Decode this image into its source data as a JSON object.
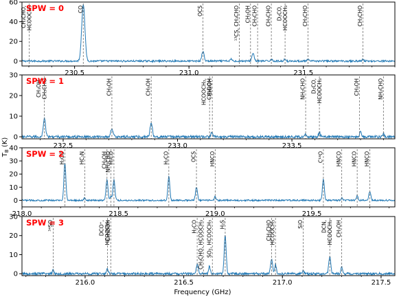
{
  "figure": {
    "xlabel": "Frequency (GHz)",
    "ylabel": "T_B (K)"
  },
  "chart_data": [
    {
      "type": "line",
      "label": "SPW = 0",
      "xlim": [
        230.27,
        231.9
      ],
      "ylim": [
        -5,
        60
      ],
      "xticks": [
        230.5,
        231.0,
        231.5
      ],
      "xtick_labels": [
        "230.5",
        "231.0",
        "231.5"
      ],
      "yticks": [
        0,
        20,
        40,
        60
      ],
      "ytick_labels": [
        "0",
        "20",
        "40",
        "60"
      ],
      "baseline_noise": 0.9,
      "peaks": [
        {
          "x": 230.538,
          "y": 58,
          "w": 0.007
        },
        {
          "x": 231.061,
          "y": 10,
          "w": 0.005
        },
        {
          "x": 231.28,
          "y": 8,
          "w": 0.005
        },
        {
          "x": 231.185,
          "y": 2,
          "w": 0.004
        },
        {
          "x": 231.36,
          "y": 2,
          "w": 0.004
        },
        {
          "x": 231.42,
          "y": 2,
          "w": 0.004
        },
        {
          "x": 231.52,
          "y": 1.5,
          "w": 0.004
        },
        {
          "x": 231.76,
          "y": 1.5,
          "w": 0.004
        }
      ],
      "lines": [
        {
          "x": 230.302,
          "text": [
            "CH₃CHO,",
            "HCOOCH₃"
          ]
        },
        {
          "x": 230.538,
          "text": [
            "CO"
          ]
        },
        {
          "x": 231.061,
          "text": [
            "OCS"
          ]
        },
        {
          "x": 231.22,
          "text": [
            "¹³CS, CH₃CHO"
          ]
        },
        {
          "x": 231.269,
          "text": [
            "CH₃OH"
          ]
        },
        {
          "x": 231.3,
          "text": [
            "CH₃CHO"
          ]
        },
        {
          "x": 231.36,
          "text": [
            "CH₃CHO"
          ]
        },
        {
          "x": 231.42,
          "text": [
            "D₂CO,",
            "HCOOCH₃"
          ]
        },
        {
          "x": 231.52,
          "text": [
            "CH₃CHO"
          ]
        },
        {
          "x": 231.76,
          "text": [
            "CH₃CHO"
          ]
        }
      ]
    },
    {
      "type": "line",
      "label": "SPW = 1",
      "xlim": [
        232.32,
        233.95
      ],
      "ylim": [
        -1,
        30
      ],
      "xticks": [
        232.5,
        233.0,
        233.5
      ],
      "xtick_labels": [
        "232.5",
        "233.0",
        "233.5"
      ],
      "yticks": [
        0,
        10,
        20,
        30
      ],
      "ytick_labels": [
        "0",
        "10",
        "20",
        "30"
      ],
      "baseline_noise": 0.6,
      "peaks": [
        {
          "x": 232.418,
          "y": 9,
          "w": 0.005
        },
        {
          "x": 232.713,
          "y": 4,
          "w": 0.005
        },
        {
          "x": 232.885,
          "y": 7,
          "w": 0.005
        },
        {
          "x": 233.15,
          "y": 2,
          "w": 0.004
        },
        {
          "x": 233.56,
          "y": 1.5,
          "w": 0.004
        },
        {
          "x": 233.62,
          "y": 2,
          "w": 0.004
        },
        {
          "x": 233.8,
          "y": 3,
          "w": 0.004
        },
        {
          "x": 233.9,
          "y": 1.5,
          "w": 0.004
        }
      ],
      "lines": [
        {
          "x": 232.418,
          "text": [
            "CH₃OH,",
            "CH₃CHO"
          ]
        },
        {
          "x": 232.713,
          "text": [
            "CH₃OH"
          ]
        },
        {
          "x": 232.885,
          "text": [
            "CH₃OH"
          ]
        },
        {
          "x": 233.14,
          "text": [
            "HCOOCH₃,",
            "CH₃OH"
          ]
        },
        {
          "x": 233.152,
          "text": [
            "CH₃DOH"
          ]
        },
        {
          "x": 233.56,
          "text": [
            "NH₂CHO"
          ]
        },
        {
          "x": 233.62,
          "text": [
            "D₂CO,",
            "HCOOCH₃"
          ]
        },
        {
          "x": 233.795,
          "text": [
            "CH₃OH"
          ]
        },
        {
          "x": 233.9,
          "text": [
            "NH₂CHO"
          ]
        }
      ]
    },
    {
      "type": "line",
      "label": "SPW = 2",
      "xlim": [
        218.0,
        219.93
      ],
      "ylim": [
        -5,
        40
      ],
      "xticks": [
        218.0,
        218.5,
        219.0,
        219.5
      ],
      "xtick_labels": [
        "218.0",
        "218.5",
        "219.0",
        "219.5"
      ],
      "yticks": [
        0,
        10,
        20,
        30,
        40
      ],
      "ytick_labels": [
        "0",
        "10",
        "20",
        "30",
        "40"
      ],
      "baseline_noise": 0.6,
      "peaks": [
        {
          "x": 218.222,
          "y": 29,
          "w": 0.005
        },
        {
          "x": 218.325,
          "y": 2,
          "w": 0.004
        },
        {
          "x": 218.44,
          "y": 16,
          "w": 0.005
        },
        {
          "x": 218.46,
          "y": 3,
          "w": 0.004
        },
        {
          "x": 218.476,
          "y": 16,
          "w": 0.005
        },
        {
          "x": 218.76,
          "y": 18,
          "w": 0.005
        },
        {
          "x": 218.903,
          "y": 10,
          "w": 0.005
        },
        {
          "x": 219.0,
          "y": 3,
          "w": 0.004
        },
        {
          "x": 219.56,
          "y": 16,
          "w": 0.005
        },
        {
          "x": 219.655,
          "y": 2,
          "w": 0.004
        },
        {
          "x": 219.735,
          "y": 4,
          "w": 0.004
        },
        {
          "x": 219.8,
          "y": 7,
          "w": 0.005
        }
      ],
      "lines": [
        {
          "x": 218.222,
          "text": [
            "H₂CO"
          ]
        },
        {
          "x": 218.325,
          "text": [
            "HC₃N"
          ]
        },
        {
          "x": 218.44,
          "text": [
            "CH₃OH"
          ]
        },
        {
          "x": 218.46,
          "text": [
            "NH₂CHO"
          ]
        },
        {
          "x": 218.476,
          "text": [
            "H₂CO"
          ]
        },
        {
          "x": 218.76,
          "text": [
            "H₂CO"
          ]
        },
        {
          "x": 218.903,
          "text": [
            "OCS"
          ]
        },
        {
          "x": 219.0,
          "text": [
            "HNCO"
          ]
        },
        {
          "x": 219.56,
          "text": [
            "C¹⁸O"
          ]
        },
        {
          "x": 219.655,
          "text": [
            "HNCO"
          ]
        },
        {
          "x": 219.735,
          "text": [
            "HNCO"
          ]
        },
        {
          "x": 219.8,
          "text": [
            "HNCO"
          ]
        }
      ]
    },
    {
      "type": "line",
      "label": "SPW = 3",
      "xlim": [
        215.68,
        217.57
      ],
      "ylim": [
        -1,
        30
      ],
      "xticks": [
        216.0,
        216.5,
        217.0,
        217.5
      ],
      "xtick_labels": [
        "216.0",
        "216.5",
        "217.0",
        "217.5"
      ],
      "yticks": [
        0,
        10,
        20,
        30
      ],
      "ytick_labels": [
        "0",
        "10",
        "20",
        "30"
      ],
      "baseline_noise": 0.6,
      "peaks": [
        {
          "x": 215.838,
          "y": 2,
          "w": 0.004
        },
        {
          "x": 216.113,
          "y": 3,
          "w": 0.004
        },
        {
          "x": 216.568,
          "y": 5,
          "w": 0.005
        },
        {
          "x": 216.63,
          "y": 4,
          "w": 0.004
        },
        {
          "x": 216.71,
          "y": 20,
          "w": 0.005
        },
        {
          "x": 216.945,
          "y": 8,
          "w": 0.005
        },
        {
          "x": 216.965,
          "y": 5,
          "w": 0.004
        },
        {
          "x": 217.105,
          "y": 1.5,
          "w": 0.004
        },
        {
          "x": 217.24,
          "y": 9,
          "w": 0.005
        },
        {
          "x": 217.3,
          "y": 4,
          "w": 0.004
        }
      ],
      "lines": [
        {
          "x": 215.838,
          "text": [
            "³⁴SO"
          ]
        },
        {
          "x": 216.113,
          "text": [
            "DCO⁺,",
            "HCOOCH₃"
          ]
        },
        {
          "x": 216.13,
          "text": [
            "CH₃DOH"
          ]
        },
        {
          "x": 216.568,
          "text": [
            "H₂CO"
          ]
        },
        {
          "x": 216.6,
          "text": [
            "CH₃CHO, HCOOCH₃"
          ]
        },
        {
          "x": 216.645,
          "text": [
            "SO₂, HCOOCH₃"
          ]
        },
        {
          "x": 216.71,
          "text": [
            "H₂S"
          ]
        },
        {
          "x": 216.945,
          "text": [
            "CH₃CHO"
          ]
        },
        {
          "x": 216.965,
          "text": [
            "HCOOCH₃"
          ]
        },
        {
          "x": 217.105,
          "text": [
            "SiO"
          ]
        },
        {
          "x": 217.24,
          "text": [
            "DCN,",
            "HCOOCH₃"
          ]
        },
        {
          "x": 217.3,
          "text": [
            "CH₃OH"
          ]
        }
      ]
    }
  ]
}
